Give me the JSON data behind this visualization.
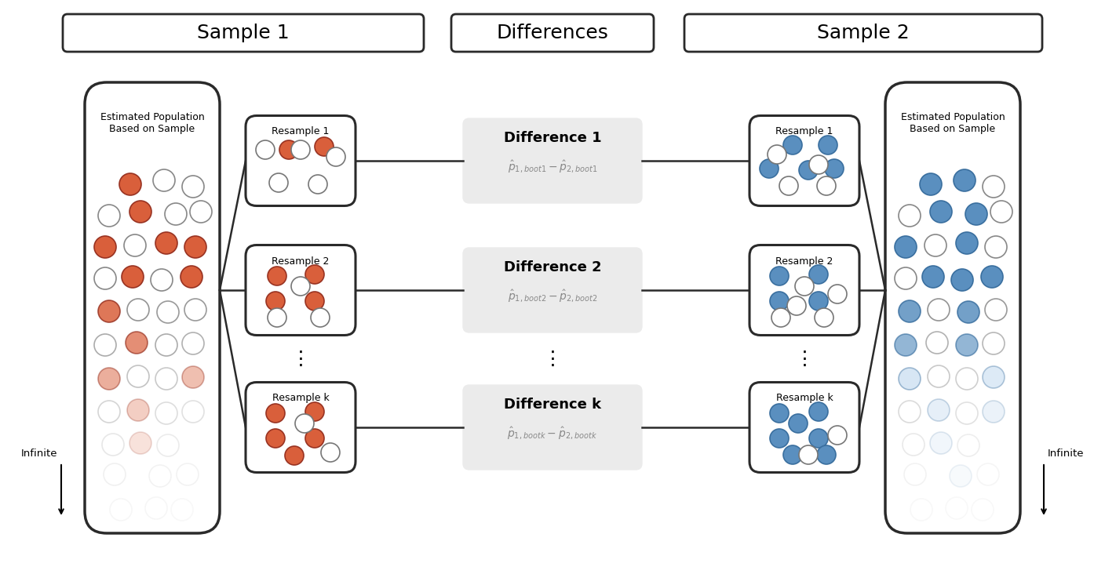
{
  "bg_color": "#ffffff",
  "title_sample1": "Sample 1",
  "title_differences": "Differences",
  "title_sample2": "Sample 2",
  "red_color": "#d95f3b",
  "blue_color": "#5a8fbf",
  "blue_light": "#a8c8e8",
  "white_color": "#ffffff",
  "box_edge": "#2a2a2a",
  "diff_bg": "#ebebeb",
  "pop_label": "Estimated Population\nBased on Sample",
  "infinite_label": "Infinite",
  "resample_labels_left": [
    "Resample 1",
    "Resample 2",
    "Resample k"
  ],
  "resample_labels_right": [
    "Resample 1",
    "Resample 2",
    "Resample k"
  ],
  "diff_labels": [
    "Difference 1",
    "Difference 2",
    "Difference k"
  ],
  "diff_eq1": "$\\hat{p}_{1,boot1} - \\hat{p}_{2,boot1}$",
  "diff_eq2": "$\\hat{p}_{1,boot2} - \\hat{p}_{2,boot2}$",
  "diff_eqk": "$\\hat{p}_{1,bootk} - \\hat{p}_{2,bootk}$"
}
